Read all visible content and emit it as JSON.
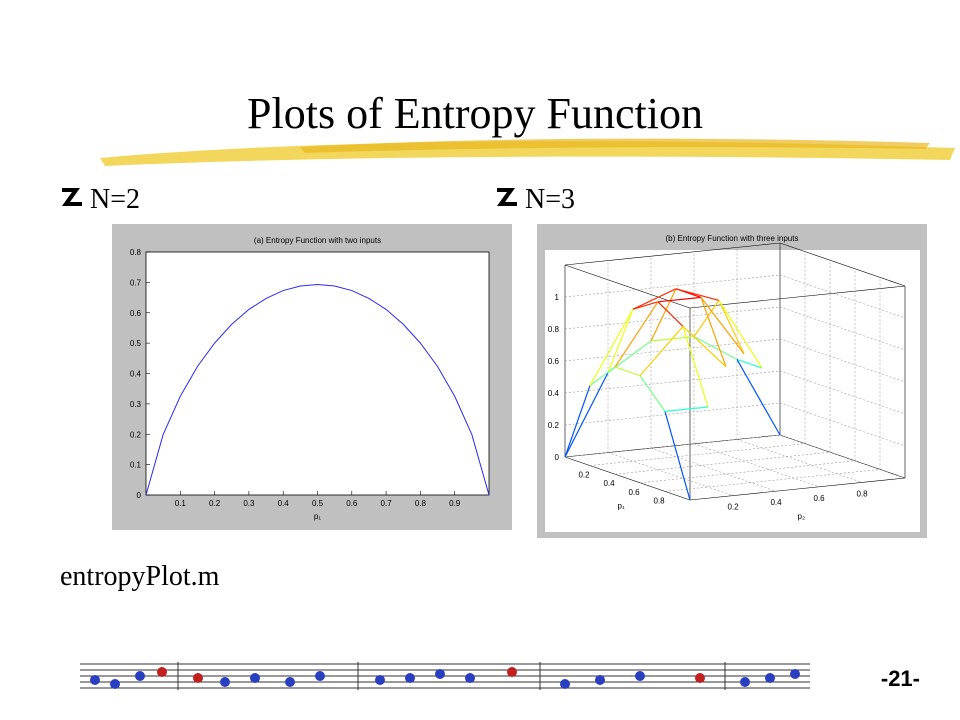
{
  "title": "Plots of Entropy Function",
  "bullets": [
    "N=2",
    "N=3"
  ],
  "footer_text": "entropyPlot.m",
  "page_number": "-21-",
  "chart_data": [
    {
      "type": "line",
      "title": "(a) Entropy Function with two inputs",
      "xlabel": "p₁",
      "color": "#2a2af0",
      "x": [
        0,
        0.05,
        0.1,
        0.15,
        0.2,
        0.25,
        0.3,
        0.35,
        0.4,
        0.45,
        0.5,
        0.55,
        0.6,
        0.65,
        0.7,
        0.75,
        0.8,
        0.85,
        0.9,
        0.95,
        1
      ],
      "values": [
        0,
        0.199,
        0.325,
        0.423,
        0.5,
        0.562,
        0.611,
        0.647,
        0.673,
        0.688,
        0.693,
        0.688,
        0.673,
        0.647,
        0.611,
        0.562,
        0.5,
        0.423,
        0.325,
        0.199,
        0
      ],
      "xlim": [
        0,
        1
      ],
      "xticks": [
        0.1,
        0.2,
        0.3,
        0.4,
        0.5,
        0.6,
        0.7,
        0.8,
        0.9
      ],
      "ylim": [
        0,
        0.8
      ],
      "yticks": [
        0,
        0.1,
        0.2,
        0.3,
        0.4,
        0.5,
        0.6,
        0.7,
        0.8
      ]
    },
    {
      "type": "surface",
      "title": "(b) Entropy Function with three inputs",
      "xlabel": "p₁",
      "ylabel": "p₂",
      "x": [
        0,
        0.2,
        0.4,
        0.6,
        0.8,
        1
      ],
      "y": [
        0,
        0.2,
        0.4,
        0.6,
        0.8,
        1
      ],
      "z": [
        [
          0,
          0.5,
          0.67,
          0.67,
          0.5,
          0
        ],
        [
          0.5,
          0.95,
          1.05,
          0.95,
          0.5,
          null
        ],
        [
          0.67,
          1.05,
          1.05,
          0.67,
          null,
          null
        ],
        [
          0.67,
          0.95,
          0.67,
          null,
          null,
          null
        ],
        [
          0.5,
          0.5,
          null,
          null,
          null,
          null
        ],
        [
          0,
          null,
          null,
          null,
          null,
          null
        ]
      ],
      "xlim": [
        0,
        1
      ],
      "xticks": [
        0.2,
        0.4,
        0.6,
        0.8
      ],
      "ylim": [
        0,
        1
      ],
      "yticks": [
        0.2,
        0.4,
        0.6,
        0.8
      ],
      "zlim": [
        0,
        1.2
      ],
      "zticks": [
        0,
        0.2,
        0.4,
        0.6,
        0.8,
        1
      ]
    }
  ]
}
